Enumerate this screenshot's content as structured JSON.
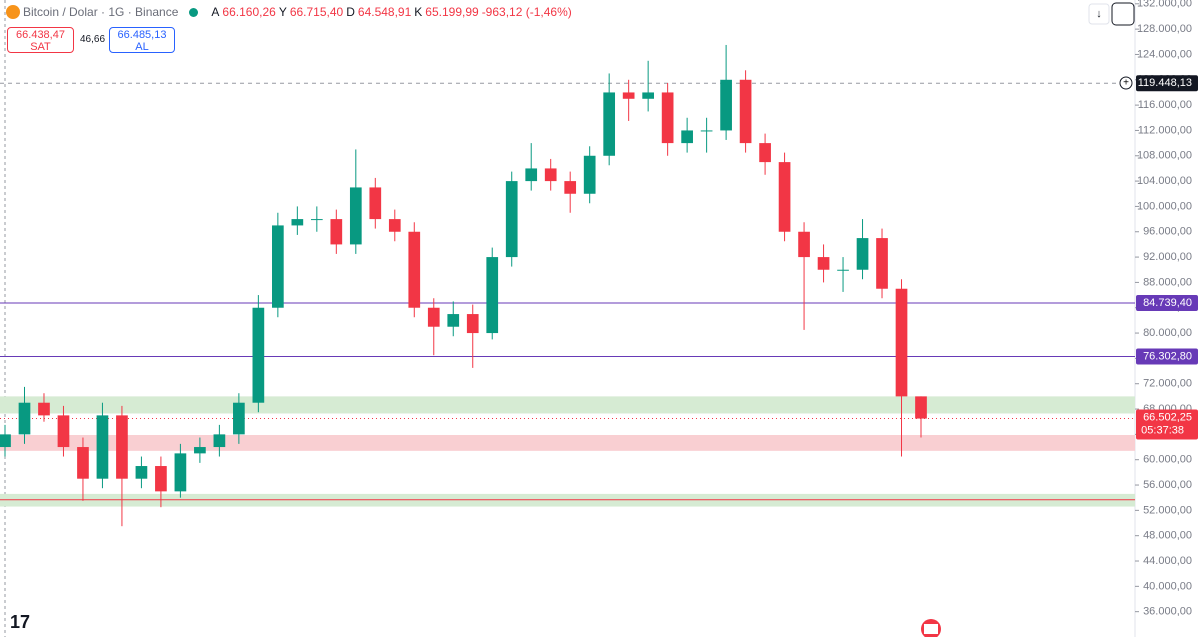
{
  "chart_data": {
    "type": "candlestick",
    "title": "Bitcoin / Dolar · 1G · Binance",
    "ohlc_header": {
      "open_label": "A",
      "open": "66.160,26",
      "high_label": "Y",
      "high": "66.715,40",
      "low_label": "D",
      "low": "64.548,91",
      "close_label": "K",
      "close": "65.199,99",
      "change": "-963,12 (-1,46%)"
    },
    "sell": {
      "price": "66.438,47",
      "label": "SAT"
    },
    "spread": "46,66",
    "buy": {
      "price": "66.485,13",
      "label": "AL"
    },
    "up_color": "#089981",
    "down_color": "#f23645",
    "candles": {
      "open": [
        62000,
        64000,
        69000,
        67000,
        62000,
        57000,
        67000,
        57000,
        59000,
        55000,
        61000,
        62000,
        64000,
        69000,
        84000,
        97000,
        98000,
        98000,
        94000,
        103000,
        98000,
        96000,
        84000,
        81000,
        83000,
        80000,
        92000,
        104000,
        106000,
        104000,
        102000,
        108000,
        118000,
        117000,
        118000,
        110000,
        112000,
        112000,
        120000,
        110000,
        107000,
        96000,
        92000,
        90000,
        90000,
        95000,
        87000,
        70000
      ],
      "high": [
        65500,
        71500,
        70500,
        68500,
        63500,
        69000,
        68500,
        60500,
        60500,
        62500,
        63500,
        65500,
        70500,
        86000,
        99000,
        100000,
        100000,
        99500,
        109000,
        104500,
        99500,
        97500,
        85500,
        85000,
        84500,
        93500,
        105500,
        110000,
        107500,
        105500,
        109500,
        121000,
        120000,
        123000,
        119500,
        114000,
        114000,
        125500,
        121500,
        111500,
        108500,
        97500,
        94000,
        92000,
        98000,
        96500,
        88500,
        70000
      ],
      "low": [
        60500,
        62500,
        66000,
        60500,
        53500,
        55500,
        49500,
        55500,
        52500,
        54000,
        59500,
        60500,
        62500,
        67500,
        82500,
        95500,
        96000,
        92500,
        92500,
        96500,
        94500,
        82500,
        76500,
        79500,
        74500,
        79000,
        90500,
        102500,
        102500,
        99000,
        100500,
        106500,
        113500,
        115000,
        108000,
        108500,
        108500,
        110500,
        108500,
        105000,
        94500,
        80500,
        88000,
        86500,
        88500,
        85500,
        60500,
        63500
      ],
      "close": [
        64000,
        69000,
        67000,
        62000,
        57000,
        67000,
        57000,
        59000,
        55000,
        61000,
        62000,
        64000,
        69000,
        84000,
        97000,
        98000,
        98000,
        94000,
        103000,
        98000,
        96000,
        84000,
        81000,
        83000,
        80000,
        92000,
        104000,
        106000,
        104000,
        102000,
        108000,
        118000,
        117000,
        118000,
        110000,
        112000,
        112000,
        120000,
        110000,
        107000,
        96000,
        92000,
        90000,
        90000,
        95000,
        87000,
        70000,
        66500
      ]
    },
    "ylim": [
      32000,
      132600
    ],
    "yticks": [
      {
        "value": 36000,
        "label": "36.000,00"
      },
      {
        "value": 40000,
        "label": "40.000,00"
      },
      {
        "value": 44000,
        "label": "44.000,00"
      },
      {
        "value": 48000,
        "label": "48.000,00"
      },
      {
        "value": 52000,
        "label": "52.000,00"
      },
      {
        "value": 56000,
        "label": "56.000,00"
      },
      {
        "value": 60000,
        "label": "60.000,00"
      },
      {
        "value": 64000,
        "label": "64.000,00"
      },
      {
        "value": 68000,
        "label": "68.000,00"
      },
      {
        "value": 72000,
        "label": "72.000,00"
      },
      {
        "value": 76000,
        "label": "76.000,00"
      },
      {
        "value": 80000,
        "label": "80.000,00"
      },
      {
        "value": 84000,
        "label": "84.000,00"
      },
      {
        "value": 88000,
        "label": "88.000,00"
      },
      {
        "value": 92000,
        "label": "92.000,00"
      },
      {
        "value": 96000,
        "label": "96.000,00"
      },
      {
        "value": 100000,
        "label": "100.000,00"
      },
      {
        "value": 104000,
        "label": "104.000,00"
      },
      {
        "value": 108000,
        "label": "108.000,00"
      },
      {
        "value": 112000,
        "label": "112.000,00"
      },
      {
        "value": 116000,
        "label": "116.000,00"
      },
      {
        "value": 120000,
        "label": "120.000,00"
      },
      {
        "value": 124000,
        "label": "124.000,00"
      },
      {
        "value": 128000,
        "label": "128.000,00"
      },
      {
        "value": 132000,
        "label": "132.000,00"
      }
    ],
    "zones": [
      {
        "from": 67300,
        "to": 70000,
        "color": "#d6ebd3"
      },
      {
        "from": 61400,
        "to": 63900,
        "color": "#f9cfd2"
      },
      {
        "from": 52600,
        "to": 54600,
        "color": "#d6ebd3"
      }
    ],
    "price_lines": [
      {
        "value": 119448.13,
        "label": "119.448,13",
        "color": "#131722",
        "style": "dashed"
      },
      {
        "value": 84739.4,
        "label": "84.739,40",
        "color": "#673ab7",
        "style": "solid"
      },
      {
        "value": 76302.8,
        "label": "76.302,80",
        "color": "#673ab7",
        "style": "solid"
      },
      {
        "value": 53670,
        "color": "#f23645",
        "style": "solid"
      }
    ],
    "last_price": {
      "value": 66502.25,
      "label": "66.502,25",
      "countdown": "05:37:38",
      "color": "#f23645"
    }
  }
}
